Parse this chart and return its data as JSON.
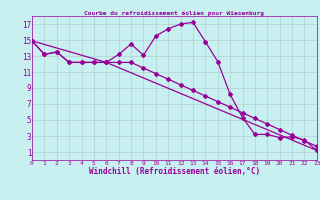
{
  "title": "Courbe du refroidissement éolien pour Wiesenburg",
  "xlabel": "Windchill (Refroidissement éolien,°C)",
  "bg_color": "#c8f0f0",
  "line_color": "#990099",
  "grid_color": "#b0d0d0",
  "xlim": [
    0,
    23
  ],
  "ylim": [
    0,
    18
  ],
  "xticks": [
    0,
    1,
    2,
    3,
    4,
    5,
    6,
    7,
    8,
    9,
    10,
    11,
    12,
    13,
    14,
    15,
    16,
    17,
    18,
    19,
    20,
    21,
    22,
    23
  ],
  "yticks": [
    1,
    3,
    5,
    7,
    9,
    11,
    13,
    15,
    17
  ],
  "line1_x": [
    0,
    1,
    2,
    3,
    4,
    5,
    6,
    7,
    8,
    9,
    10,
    11,
    12,
    13,
    14,
    15,
    16,
    17,
    18,
    19,
    20,
    21,
    22,
    23
  ],
  "line1_y": [
    14.9,
    13.2,
    13.5,
    12.2,
    12.2,
    12.2,
    12.2,
    13.2,
    14.5,
    13.1,
    15.5,
    16.4,
    17.0,
    17.2,
    14.8,
    12.3,
    8.2,
    5.3,
    3.2,
    3.2,
    2.8,
    2.9,
    2.5,
    1.2
  ],
  "line2_x": [
    0,
    1,
    2,
    3,
    4,
    5,
    6,
    7,
    8,
    9,
    10,
    11,
    12,
    13,
    14,
    15,
    16,
    17,
    18,
    19,
    20,
    21,
    22,
    23
  ],
  "line2_y": [
    14.9,
    13.2,
    13.5,
    12.2,
    12.2,
    12.2,
    12.2,
    12.2,
    12.2,
    11.5,
    10.8,
    10.1,
    9.4,
    8.7,
    8.0,
    7.3,
    6.6,
    5.9,
    5.2,
    4.5,
    3.8,
    3.1,
    2.4,
    1.7
  ],
  "line3_x": [
    0,
    6,
    23
  ],
  "line3_y": [
    14.9,
    12.2,
    1.2
  ]
}
